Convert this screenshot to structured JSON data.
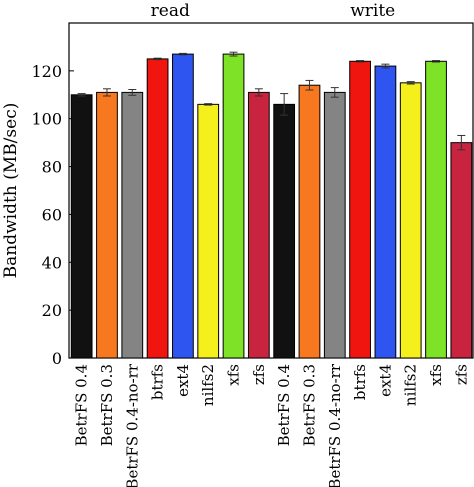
{
  "chart_data": {
    "type": "bar",
    "ylabel": "Bandwidth (MB/sec)",
    "ylim": [
      0,
      140
    ],
    "yticks": [
      0,
      20,
      40,
      60,
      80,
      100,
      120
    ],
    "grid": false,
    "groups": [
      {
        "name": "read",
        "categories": [
          "BetrFS 0.4",
          "BetrFS 0.3",
          "BetrFS 0.4-no-rr",
          "btrfs",
          "ext4",
          "nilfs2",
          "xfs",
          "zfs"
        ],
        "values": [
          110,
          111,
          111,
          125,
          127,
          106,
          127,
          111
        ],
        "errors": [
          0.5,
          1.5,
          1.2,
          0.3,
          0.3,
          0.3,
          0.8,
          1.5
        ]
      },
      {
        "name": "write",
        "categories": [
          "BetrFS 0.4",
          "BetrFS 0.3",
          "BetrFS 0.4-no-rr",
          "btrfs",
          "ext4",
          "nilfs2",
          "xfs",
          "zfs"
        ],
        "values": [
          106,
          114,
          111,
          124,
          122,
          115,
          124,
          90
        ],
        "errors": [
          4.5,
          2,
          2,
          0.3,
          0.8,
          0.5,
          0.3,
          3
        ]
      }
    ],
    "colors": {
      "BetrFS 0.4": "#111111",
      "BetrFS 0.3": "#f7781e",
      "BetrFS 0.4-no-rr": "#848484",
      "btrfs": "#f0160f",
      "ext4": "#2f55f0",
      "nilfs2": "#f5f01c",
      "xfs": "#7ee227",
      "zfs": "#c9243f"
    }
  }
}
